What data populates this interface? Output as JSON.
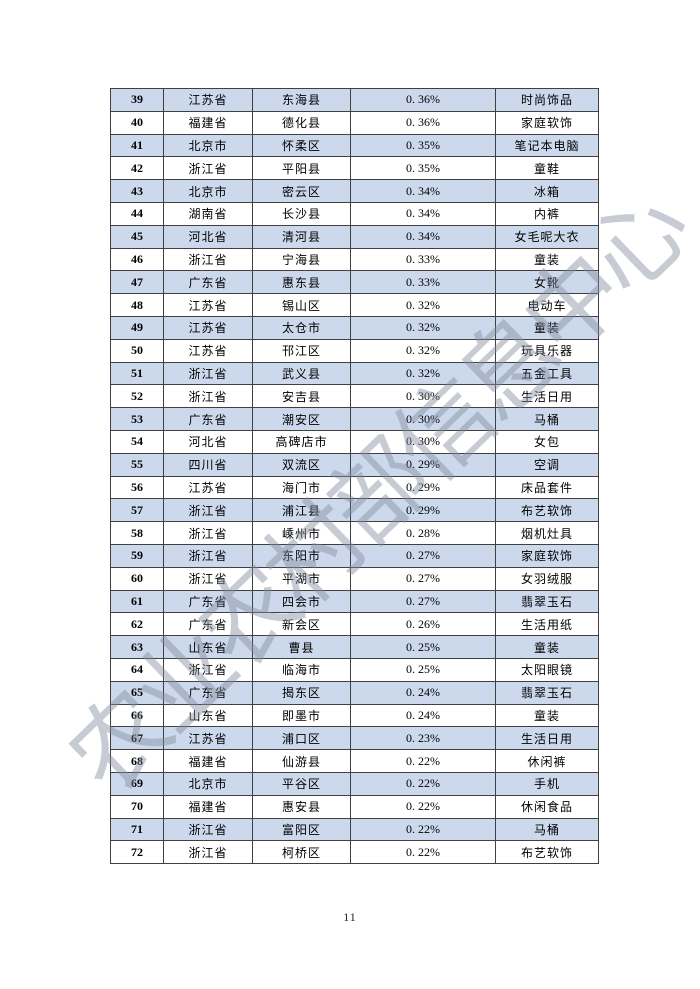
{
  "page": {
    "number": "11"
  },
  "watermark": {
    "text": "农业农村部信息中心"
  },
  "colors": {
    "row_alt": "#ccd9ec",
    "row_base": "#ffffff",
    "border": "#404040",
    "text": "#000000",
    "watermark": "rgba(130,140,160,0.45)"
  },
  "table": {
    "columns": [
      "rank",
      "province",
      "county",
      "share",
      "category"
    ],
    "rows": [
      [
        "39",
        "江苏省",
        "东海县",
        "0. 36%",
        "时尚饰品"
      ],
      [
        "40",
        "福建省",
        "德化县",
        "0. 36%",
        "家庭软饰"
      ],
      [
        "41",
        "北京市",
        "怀柔区",
        "0. 35%",
        "笔记本电脑"
      ],
      [
        "42",
        "浙江省",
        "平阳县",
        "0. 35%",
        "童鞋"
      ],
      [
        "43",
        "北京市",
        "密云区",
        "0. 34%",
        "冰箱"
      ],
      [
        "44",
        "湖南省",
        "长沙县",
        "0. 34%",
        "内裤"
      ],
      [
        "45",
        "河北省",
        "清河县",
        "0. 34%",
        "女毛呢大衣"
      ],
      [
        "46",
        "浙江省",
        "宁海县",
        "0. 33%",
        "童装"
      ],
      [
        "47",
        "广东省",
        "惠东县",
        "0. 33%",
        "女靴"
      ],
      [
        "48",
        "江苏省",
        "锡山区",
        "0. 32%",
        "电动车"
      ],
      [
        "49",
        "江苏省",
        "太仓市",
        "0. 32%",
        "童装"
      ],
      [
        "50",
        "江苏省",
        "邗江区",
        "0. 32%",
        "玩具乐器"
      ],
      [
        "51",
        "浙江省",
        "武义县",
        "0. 32%",
        "五金工具"
      ],
      [
        "52",
        "浙江省",
        "安吉县",
        "0. 30%",
        "生活日用"
      ],
      [
        "53",
        "广东省",
        "潮安区",
        "0. 30%",
        "马桶"
      ],
      [
        "54",
        "河北省",
        "高碑店市",
        "0. 30%",
        "女包"
      ],
      [
        "55",
        "四川省",
        "双流区",
        "0. 29%",
        "空调"
      ],
      [
        "56",
        "江苏省",
        "海门市",
        "0. 29%",
        "床品套件"
      ],
      [
        "57",
        "浙江省",
        "浦江县",
        "0. 29%",
        "布艺软饰"
      ],
      [
        "58",
        "浙江省",
        "嵊州市",
        "0. 28%",
        "烟机灶具"
      ],
      [
        "59",
        "浙江省",
        "东阳市",
        "0. 27%",
        "家庭软饰"
      ],
      [
        "60",
        "浙江省",
        "平湖市",
        "0. 27%",
        "女羽绒服"
      ],
      [
        "61",
        "广东省",
        "四会市",
        "0. 27%",
        "翡翠玉石"
      ],
      [
        "62",
        "广东省",
        "新会区",
        "0. 26%",
        "生活用纸"
      ],
      [
        "63",
        "山东省",
        "曹县",
        "0. 25%",
        "童装"
      ],
      [
        "64",
        "浙江省",
        "临海市",
        "0. 25%",
        "太阳眼镜"
      ],
      [
        "65",
        "广东省",
        "揭东区",
        "0. 24%",
        "翡翠玉石"
      ],
      [
        "66",
        "山东省",
        "即墨市",
        "0. 24%",
        "童装"
      ],
      [
        "67",
        "江苏省",
        "浦口区",
        "0. 23%",
        "生活日用"
      ],
      [
        "68",
        "福建省",
        "仙游县",
        "0. 22%",
        "休闲裤"
      ],
      [
        "69",
        "北京市",
        "平谷区",
        "0. 22%",
        "手机"
      ],
      [
        "70",
        "福建省",
        "惠安县",
        "0. 22%",
        "休闲食品"
      ],
      [
        "71",
        "浙江省",
        "富阳区",
        "0. 22%",
        "马桶"
      ],
      [
        "72",
        "浙江省",
        "柯桥区",
        "0. 22%",
        "布艺软饰"
      ]
    ]
  }
}
